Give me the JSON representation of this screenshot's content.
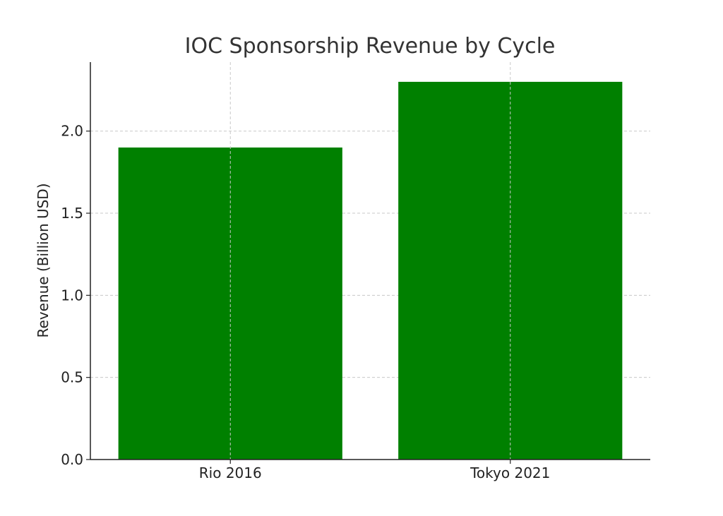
{
  "chart_data": {
    "type": "bar",
    "title": "IOC Sponsorship Revenue by Cycle",
    "xlabel": "",
    "ylabel": "Revenue (Billion USD)",
    "categories": [
      "Rio 2016",
      "Tokyo 2021"
    ],
    "values": [
      1.9,
      2.3
    ],
    "ylim": [
      0,
      2.42
    ],
    "yticks": [
      0.0,
      0.5,
      1.0,
      1.5,
      2.0
    ],
    "ytick_labels": [
      "0.0",
      "0.5",
      "1.0",
      "1.5",
      "2.0"
    ],
    "grid": true,
    "bar_color": "#008000"
  }
}
